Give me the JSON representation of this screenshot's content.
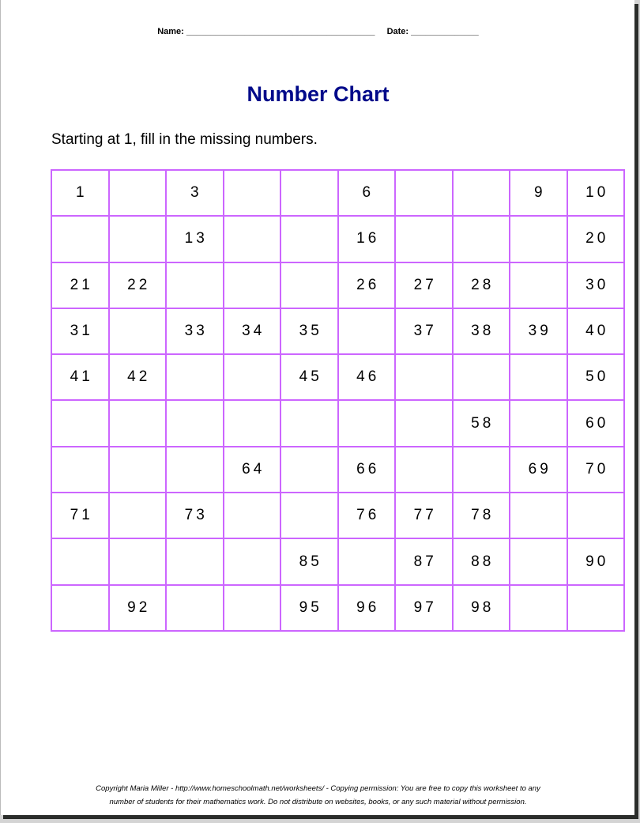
{
  "header": {
    "name_label": "Name: _______________________________________",
    "date_label": "Date: ______________"
  },
  "title": "Number Chart",
  "instructions": "Starting at 1, fill in the missing numbers.",
  "grid": [
    [
      "1",
      "",
      "3",
      "",
      "",
      "6",
      "",
      "",
      "9",
      "10"
    ],
    [
      "",
      "",
      "13",
      "",
      "",
      "16",
      "",
      "",
      "",
      "20"
    ],
    [
      "21",
      "22",
      "",
      "",
      "",
      "26",
      "27",
      "28",
      "",
      "30"
    ],
    [
      "31",
      "",
      "33",
      "34",
      "35",
      "",
      "37",
      "38",
      "39",
      "40"
    ],
    [
      "41",
      "42",
      "",
      "",
      "45",
      "46",
      "",
      "",
      "",
      "50"
    ],
    [
      "",
      "",
      "",
      "",
      "",
      "",
      "",
      "58",
      "",
      "60"
    ],
    [
      "",
      "",
      "",
      "64",
      "",
      "66",
      "",
      "",
      "69",
      "70"
    ],
    [
      "71",
      "",
      "73",
      "",
      "",
      "76",
      "77",
      "78",
      "",
      ""
    ],
    [
      "",
      "",
      "",
      "",
      "85",
      "",
      "87",
      "88",
      "",
      "90"
    ],
    [
      "",
      "92",
      "",
      "",
      "95",
      "96",
      "97",
      "98",
      "",
      ""
    ]
  ],
  "footer": {
    "line1": "Copyright Maria Miller - http://www.homeschoolmath.net/worksheets/ - Copying permission: You are free to copy this worksheet to any",
    "line2": "number of students for their mathematics work. Do not distribute on websites, books, or any such material without permission."
  },
  "colors": {
    "title": "#000a8a",
    "grid_border": "#cc66ff"
  }
}
